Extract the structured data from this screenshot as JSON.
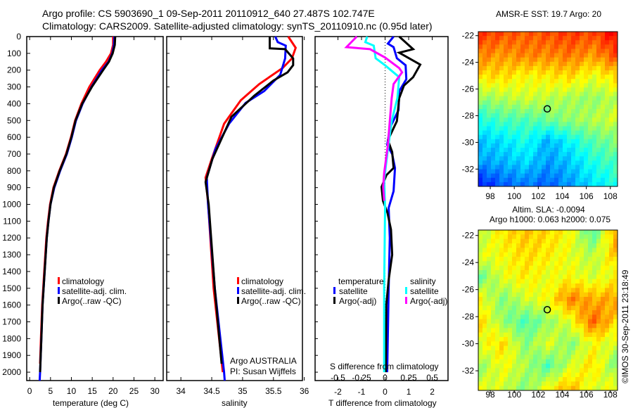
{
  "title": {
    "line1": "Argo profile: CS 5903690_1 09-Sep-2011 20110912_640 27.487S 102.747E",
    "line2": "Climatology: CARS2009. Satellite-adjusted climatology: synTS_20110910.nc (0.95d later)"
  },
  "colors": {
    "climatology": "#ff0000",
    "satellite": "#0000ff",
    "argo": "#000000",
    "s_satellite": "#00ffff",
    "s_argo": "#ff00ff"
  },
  "chart_data": [
    {
      "type": "line",
      "name": "temperature",
      "xlabel": "temperature (deg C)",
      "xlim": [
        -0.7,
        32
      ],
      "xticks": [
        0,
        5,
        10,
        15,
        20,
        25,
        30
      ],
      "ylim": [
        0,
        2050
      ],
      "yticks": [
        0,
        100,
        200,
        300,
        400,
        500,
        600,
        700,
        800,
        900,
        1000,
        1100,
        1200,
        1300,
        1400,
        1500,
        1600,
        1700,
        1800,
        1900,
        2000
      ],
      "legend": [
        "climatology",
        "satellite-adj. clim.",
        "Argo(..raw -QC)"
      ],
      "series": [
        {
          "name": "climatology",
          "color": "#ff0000",
          "points": [
            [
              0,
              20
            ],
            [
              50,
              20
            ],
            [
              100,
              19.5
            ],
            [
              150,
              18.3
            ],
            [
              200,
              16.8
            ],
            [
              300,
              14.3
            ],
            [
              400,
              12.4
            ],
            [
              500,
              10.9
            ],
            [
              600,
              9.9
            ],
            [
              700,
              8.7
            ],
            [
              800,
              7.1
            ],
            [
              900,
              5.7
            ],
            [
              1000,
              4.9
            ],
            [
              1100,
              4.4
            ],
            [
              1200,
              4.0
            ],
            [
              1400,
              3.5
            ],
            [
              1600,
              3.0
            ],
            [
              1800,
              2.7
            ],
            [
              1950,
              2.5
            ]
          ]
        },
        {
          "name": "satellite-adj. clim.",
          "color": "#0000ff",
          "points": [
            [
              0,
              20.3
            ],
            [
              50,
              20.2
            ],
            [
              100,
              19.8
            ],
            [
              150,
              18.9
            ],
            [
              200,
              17.3
            ],
            [
              300,
              14.8
            ],
            [
              400,
              12.7
            ],
            [
              500,
              11.1
            ],
            [
              600,
              10.1
            ],
            [
              700,
              8.9
            ],
            [
              800,
              7.3
            ],
            [
              900,
              5.9
            ],
            [
              1000,
              5.0
            ],
            [
              1100,
              4.5
            ],
            [
              1200,
              4.1
            ],
            [
              1400,
              3.6
            ],
            [
              1600,
              3.1
            ],
            [
              1800,
              2.8
            ],
            [
              2000,
              2.5
            ],
            [
              2050,
              2.4
            ]
          ]
        },
        {
          "name": "Argo(..raw -QC)",
          "color": "#000000",
          "points": [
            [
              0,
              20.5
            ],
            [
              50,
              20.4
            ],
            [
              100,
              19.9
            ],
            [
              150,
              19.0
            ],
            [
              200,
              17.6
            ],
            [
              300,
              14.9
            ],
            [
              400,
              12.6
            ],
            [
              500,
              11.0
            ],
            [
              600,
              10.0
            ],
            [
              700,
              8.8
            ],
            [
              800,
              7.2
            ],
            [
              900,
              5.8
            ],
            [
              1000,
              5.0
            ],
            [
              1100,
              4.5
            ],
            [
              1200,
              4.1
            ],
            [
              1400,
              3.6
            ],
            [
              1600,
              3.1
            ],
            [
              1800,
              2.8
            ],
            [
              2000,
              2.5
            ]
          ]
        }
      ]
    },
    {
      "type": "line",
      "name": "salinity",
      "xlabel": "salinity",
      "xlim": [
        33.77,
        35.97
      ],
      "xticks": [
        34,
        34.5,
        35,
        35.5,
        36
      ],
      "ylim": [
        0,
        2050
      ],
      "legend": [
        "climatology",
        "satellite-adj. clim.",
        "Argo(..raw -QC)"
      ],
      "annotation": [
        "Argo AUSTRALIA",
        "PI: Susan Wijffels"
      ],
      "series": [
        {
          "name": "climatology",
          "color": "#ff0000",
          "points": [
            [
              0,
              35.74
            ],
            [
              67,
              35.86
            ],
            [
              130,
              35.8
            ],
            [
              187,
              35.65
            ],
            [
              283,
              35.27
            ],
            [
              380,
              34.97
            ],
            [
              520,
              34.7
            ],
            [
              730,
              34.5
            ],
            [
              840,
              34.4
            ],
            [
              990,
              34.44
            ],
            [
              1500,
              34.53
            ],
            [
              2000,
              34.68
            ]
          ]
        },
        {
          "name": "satellite-adj. clim.",
          "color": "#0000ff",
          "points": [
            [
              0,
              35.53
            ],
            [
              33,
              35.57
            ],
            [
              54,
              35.7
            ],
            [
              130,
              35.69
            ],
            [
              228,
              35.61
            ],
            [
              325,
              35.35
            ],
            [
              395,
              35.05
            ],
            [
              520,
              34.78
            ],
            [
              670,
              34.56
            ],
            [
              840,
              34.42
            ],
            [
              1000,
              34.44
            ],
            [
              1500,
              34.55
            ],
            [
              2000,
              34.7
            ],
            [
              2050,
              34.71
            ]
          ]
        },
        {
          "name": "Argo(..raw -QC)",
          "color": "#000000",
          "points": [
            [
              0,
              35.44
            ],
            [
              70,
              35.44
            ],
            [
              75,
              35.69
            ],
            [
              130,
              35.82
            ],
            [
              170,
              35.82
            ],
            [
              213,
              35.73
            ],
            [
              262,
              35.5
            ],
            [
              352,
              35.19
            ],
            [
              478,
              34.82
            ],
            [
              730,
              34.51
            ],
            [
              867,
              34.4
            ],
            [
              1000,
              34.45
            ],
            [
              1500,
              34.55
            ],
            [
              1950,
              34.66
            ]
          ]
        }
      ]
    },
    {
      "type": "line",
      "name": "difference",
      "xlabel": "T difference from climatology",
      "xlabel2": "S difference from climatology",
      "xlim": [
        -2.97,
        2.67
      ],
      "xticks": [
        -2,
        -1,
        0,
        1,
        2
      ],
      "xticks_s": [
        -0.5,
        -0.25,
        0,
        0.25,
        0.5
      ],
      "ylim": [
        0,
        2050
      ],
      "legend_t_title": "temperature",
      "legend_s_title": "salinity",
      "legend_t": [
        "satellite",
        "Argo(-adj)"
      ],
      "legend_s": [
        "satellite",
        "Argo(-adj)"
      ],
      "series": [
        {
          "name": "T satellite",
          "var": "T",
          "color": "#0000ff",
          "points": [
            [
              0,
              0.36
            ],
            [
              42,
              0.12
            ],
            [
              63,
              0.36
            ],
            [
              129,
              0.5
            ],
            [
              171,
              0.87
            ],
            [
              254,
              0.9
            ],
            [
              325,
              0.6
            ],
            [
              438,
              0.57
            ],
            [
              546,
              0.2
            ],
            [
              646,
              0.09
            ],
            [
              700,
              0.3
            ],
            [
              783,
              0.42
            ],
            [
              921,
              0.36
            ],
            [
              1021,
              0.15
            ],
            [
              1200,
              0.2
            ],
            [
              1500,
              0.15
            ],
            [
              2000,
              0.09
            ]
          ]
        },
        {
          "name": "T Argo(-adj)",
          "var": "T",
          "color": "#000000",
          "points": [
            [
              0,
              0.6
            ],
            [
              75,
              1.19
            ],
            [
              96,
              0.6
            ],
            [
              167,
              1.49
            ],
            [
              242,
              1.19
            ],
            [
              292,
              0.8
            ],
            [
              367,
              0.6
            ],
            [
              504,
              0.5
            ],
            [
              617,
              0.12
            ],
            [
              688,
              0.3
            ],
            [
              783,
              0.36
            ],
            [
              825,
              0.06
            ],
            [
              896,
              -0.15
            ],
            [
              979,
              -0.09
            ],
            [
              1050,
              0.1
            ],
            [
              1150,
              0.25
            ],
            [
              1300,
              0.3
            ],
            [
              1450,
              0.15
            ],
            [
              1600,
              0.05
            ],
            [
              2000,
              0.03
            ]
          ]
        },
        {
          "name": "S satellite",
          "var": "S",
          "color": "#00ffff",
          "points": [
            [
              0,
              -0.19
            ],
            [
              33,
              -0.21
            ],
            [
              54,
              -0.12
            ],
            [
              129,
              -0.1
            ],
            [
              171,
              0
            ],
            [
              242,
              0.15
            ],
            [
              367,
              0.13
            ],
            [
              504,
              0.07
            ],
            [
              671,
              0.03
            ],
            [
              854,
              -0.01
            ],
            [
              1021,
              0
            ],
            [
              1500,
              -0.01
            ],
            [
              2000,
              -0.01
            ]
          ]
        },
        {
          "name": "S Argo(-adj)",
          "var": "S",
          "color": "#ff00ff",
          "points": [
            [
              0,
              -0.3
            ],
            [
              63,
              -0.41
            ],
            [
              75,
              -0.16
            ],
            [
              125,
              0
            ],
            [
              188,
              0.15
            ],
            [
              213,
              0.18
            ],
            [
              283,
              0.09
            ],
            [
              367,
              0.07
            ],
            [
              504,
              0.05
            ],
            [
              646,
              0.03
            ],
            [
              813,
              -0.01
            ],
            [
              896,
              -0.02
            ],
            [
              979,
              -0.01
            ]
          ]
        }
      ]
    },
    {
      "type": "heatmap",
      "name": "sst-map",
      "title": "AMSR-E SST: 19.7 Argo: 20",
      "xlim": [
        97,
        108.6
      ],
      "ylim": [
        -33.3,
        -21.7
      ],
      "xticks": [
        98,
        100,
        102,
        104,
        106,
        108
      ],
      "yticks": [
        -22,
        -24,
        -26,
        -28,
        -30,
        -32
      ],
      "marker": {
        "lon": 102.747,
        "lat": -27.487
      },
      "grid_normalized": [
        [
          0.82,
          0.8,
          0.78,
          0.8,
          0.82,
          0.8,
          0.88
        ],
        [
          0.75,
          0.72,
          0.75,
          0.74,
          0.76,
          0.72,
          0.8
        ],
        [
          0.65,
          0.66,
          0.62,
          0.64,
          0.66,
          0.6,
          0.66
        ],
        [
          0.52,
          0.55,
          0.58,
          0.56,
          0.54,
          0.52,
          0.56
        ],
        [
          0.4,
          0.45,
          0.45,
          0.48,
          0.52,
          0.55,
          0.58
        ],
        [
          0.32,
          0.35,
          0.4,
          0.3,
          0.38,
          0.46,
          0.5
        ],
        [
          0.28,
          0.3,
          0.34,
          0.28,
          0.32,
          0.4,
          0.45
        ],
        [
          0.15,
          0.22,
          0.25,
          0.22,
          0.28,
          0.35,
          0.4
        ]
      ]
    },
    {
      "type": "heatmap",
      "name": "sla-map",
      "title": "Altim. SLA: -0.0094",
      "subtitle": "Argo h1000: 0.063 h2000: 0.075",
      "xlim": [
        97,
        108.6
      ],
      "ylim": [
        -33.45,
        -21.6
      ],
      "xticks": [
        98,
        100,
        102,
        104,
        106,
        108
      ],
      "yticks": [
        -22,
        -24,
        -26,
        -28,
        -30,
        -32
      ],
      "marker": {
        "lon": 102.747,
        "lat": -27.487
      },
      "grid_normalized": [
        [
          0.55,
          0.65,
          0.68,
          0.66,
          0.62,
          0.45,
          0.72
        ],
        [
          0.6,
          0.62,
          0.66,
          0.64,
          0.6,
          0.55,
          0.68
        ],
        [
          0.48,
          0.6,
          0.64,
          0.6,
          0.62,
          0.58,
          0.62
        ],
        [
          0.62,
          0.5,
          0.58,
          0.62,
          0.75,
          0.7,
          0.72
        ],
        [
          0.66,
          0.52,
          0.45,
          0.52,
          0.6,
          0.78,
          0.66
        ],
        [
          0.6,
          0.66,
          0.5,
          0.6,
          0.5,
          0.62,
          0.58
        ],
        [
          0.52,
          0.62,
          0.55,
          0.45,
          0.58,
          0.66,
          0.5
        ],
        [
          0.6,
          0.58,
          0.5,
          0.62,
          0.7,
          0.58,
          0.62
        ]
      ]
    }
  ],
  "footer": {
    "credit": "©IMOS 30-Sep-2011 23:18:49"
  }
}
